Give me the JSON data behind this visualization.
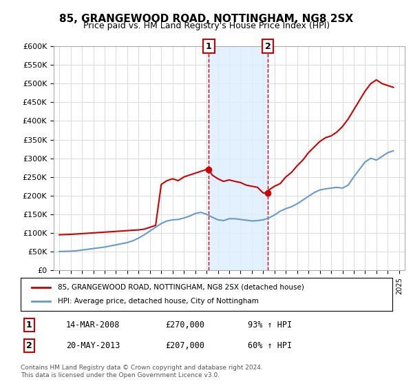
{
  "title": "85, GRANGEWOOD ROAD, NOTTINGHAM, NG8 2SX",
  "subtitle": "Price paid vs. HM Land Registry's House Price Index (HPI)",
  "ylabel": "",
  "background_color": "#ffffff",
  "plot_bg_color": "#ffffff",
  "grid_color": "#dddddd",
  "ylim": [
    0,
    600000
  ],
  "yticks": [
    0,
    50000,
    100000,
    150000,
    200000,
    250000,
    300000,
    350000,
    400000,
    450000,
    500000,
    550000,
    600000
  ],
  "ytick_labels": [
    "£0",
    "£50K",
    "£100K",
    "£150K",
    "£200K",
    "£250K",
    "£300K",
    "£350K",
    "£400K",
    "£450K",
    "£500K",
    "£550K",
    "£600K"
  ],
  "xlim_start": 1994.5,
  "xlim_end": 2025.5,
  "marker1_x": 2008.2,
  "marker1_label": "1",
  "marker1_date": "14-MAR-2008",
  "marker1_price": "£270,000",
  "marker1_hpi": "93% ↑ HPI",
  "marker2_x": 2013.4,
  "marker2_label": "2",
  "marker2_date": "20-MAY-2013",
  "marker2_price": "£207,000",
  "marker2_hpi": "60% ↑ HPI",
  "shade_color": "#ddeeff",
  "shade_alpha": 0.5,
  "red_line_color": "#cc0000",
  "blue_line_color": "#6699cc",
  "legend_label_red": "85, GRANGEWOOD ROAD, NOTTINGHAM, NG8 2SX (detached house)",
  "legend_label_blue": "HPI: Average price, detached house, City of Nottingham",
  "footer_text": "Contains HM Land Registry data © Crown copyright and database right 2024.\nThis data is licensed under the Open Government Licence v3.0.",
  "hpi_years": [
    1995,
    1995.5,
    1996,
    1996.5,
    1997,
    1997.5,
    1998,
    1998.5,
    1999,
    1999.5,
    2000,
    2000.5,
    2001,
    2001.5,
    2002,
    2002.5,
    2003,
    2003.5,
    2004,
    2004.5,
    2005,
    2005.5,
    2006,
    2006.5,
    2007,
    2007.5,
    2008,
    2008.5,
    2009,
    2009.5,
    2010,
    2010.5,
    2011,
    2011.5,
    2012,
    2012.5,
    2013,
    2013.5,
    2014,
    2014.5,
    2015,
    2015.5,
    2016,
    2016.5,
    2017,
    2017.5,
    2018,
    2018.5,
    2019,
    2019.5,
    2020,
    2020.5,
    2021,
    2021.5,
    2022,
    2022.5,
    2023,
    2023.5,
    2024,
    2024.5
  ],
  "hpi_values": [
    50000,
    50500,
    51000,
    52000,
    54000,
    56000,
    58000,
    60000,
    62000,
    65000,
    68000,
    71000,
    74000,
    79000,
    86000,
    95000,
    105000,
    115000,
    125000,
    132000,
    135000,
    136000,
    140000,
    145000,
    152000,
    155000,
    150000,
    142000,
    135000,
    133000,
    138000,
    138000,
    136000,
    134000,
    132000,
    133000,
    135000,
    140000,
    148000,
    158000,
    165000,
    170000,
    178000,
    188000,
    198000,
    208000,
    215000,
    218000,
    220000,
    222000,
    220000,
    228000,
    250000,
    270000,
    290000,
    300000,
    295000,
    305000,
    315000,
    320000
  ],
  "red_years": [
    1995,
    1995.5,
    1996,
    1996.5,
    1997,
    1997.5,
    1998,
    1998.5,
    1999,
    1999.5,
    2000,
    2000.5,
    2001,
    2001.5,
    2002,
    2002.5,
    2003,
    2003.5,
    2004,
    2004.5,
    2005,
    2005.5,
    2006,
    2006.5,
    2007,
    2007.5,
    2008,
    2008.2,
    2008.5,
    2009,
    2009.5,
    2010,
    2010.5,
    2011,
    2011.5,
    2012,
    2012.5,
    2013,
    2013.4,
    2013.5,
    2014,
    2014.5,
    2015,
    2015.5,
    2016,
    2016.5,
    2017,
    2017.5,
    2018,
    2018.5,
    2019,
    2019.5,
    2020,
    2020.5,
    2021,
    2021.5,
    2022,
    2022.5,
    2023,
    2023.5,
    2024,
    2024.5
  ],
  "red_values": [
    95000,
    95500,
    96000,
    97000,
    98000,
    99000,
    100000,
    101000,
    102000,
    103000,
    104000,
    105000,
    106000,
    107000,
    108000,
    110000,
    115000,
    120000,
    230000,
    240000,
    245000,
    240000,
    250000,
    255000,
    260000,
    265000,
    270000,
    270000,
    255000,
    245000,
    238000,
    242000,
    238000,
    235000,
    228000,
    225000,
    222000,
    207000,
    207000,
    215000,
    225000,
    232000,
    250000,
    262000,
    280000,
    295000,
    315000,
    330000,
    345000,
    355000,
    360000,
    370000,
    385000,
    405000,
    430000,
    455000,
    480000,
    500000,
    510000,
    500000,
    495000,
    490000
  ]
}
